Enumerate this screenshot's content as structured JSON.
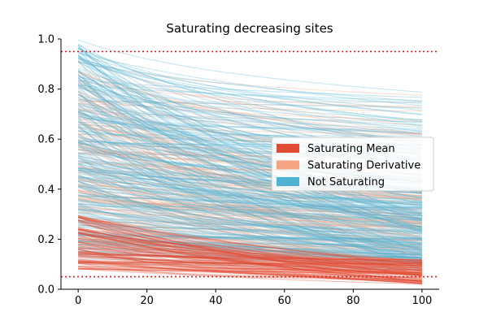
{
  "chart_data": {
    "type": "line",
    "title": "Saturating decreasing sites",
    "xlabel": "",
    "ylabel": "",
    "xlim": [
      -5,
      105
    ],
    "ylim": [
      0,
      1
    ],
    "x_ticks": [
      0,
      20,
      40,
      60,
      80,
      100
    ],
    "y_ticks": [
      0.0,
      0.2,
      0.4,
      0.6,
      0.8,
      1.0
    ],
    "x_tick_labels": [
      "0",
      "20",
      "40",
      "60",
      "80",
      "100"
    ],
    "y_tick_labels": [
      "0.0",
      "0.2",
      "0.4",
      "0.6",
      "0.8",
      "1.0"
    ],
    "x_range": [
      0,
      100
    ],
    "reference_lines": [
      {
        "y": 0.95,
        "style": "dotted",
        "color": "#d62728"
      },
      {
        "y": 0.05,
        "style": "dotted",
        "color": "#d62728"
      }
    ],
    "grid": false,
    "legend_position": "center-right",
    "series": [
      {
        "name": "Saturating Mean",
        "color": "#e34a33",
        "line_count": 90,
        "start_range": [
          0.08,
          0.3
        ],
        "end_range": [
          0.02,
          0.12
        ]
      },
      {
        "name": "Saturating Derivative",
        "color": "#f4a582",
        "line_count": 110,
        "start_range": [
          0.1,
          0.92
        ],
        "end_range": [
          0.04,
          0.8
        ]
      },
      {
        "name": "Not Saturating",
        "color": "#4eb3d3",
        "line_count": 220,
        "start_range": [
          0.12,
          1.0
        ],
        "end_range": [
          0.1,
          0.81
        ]
      }
    ],
    "gray_lines": {
      "color": "#9e9e9e",
      "line_count": 120,
      "start_range": [
        0.1,
        0.88
      ],
      "end_range": [
        0.06,
        0.76
      ]
    }
  }
}
